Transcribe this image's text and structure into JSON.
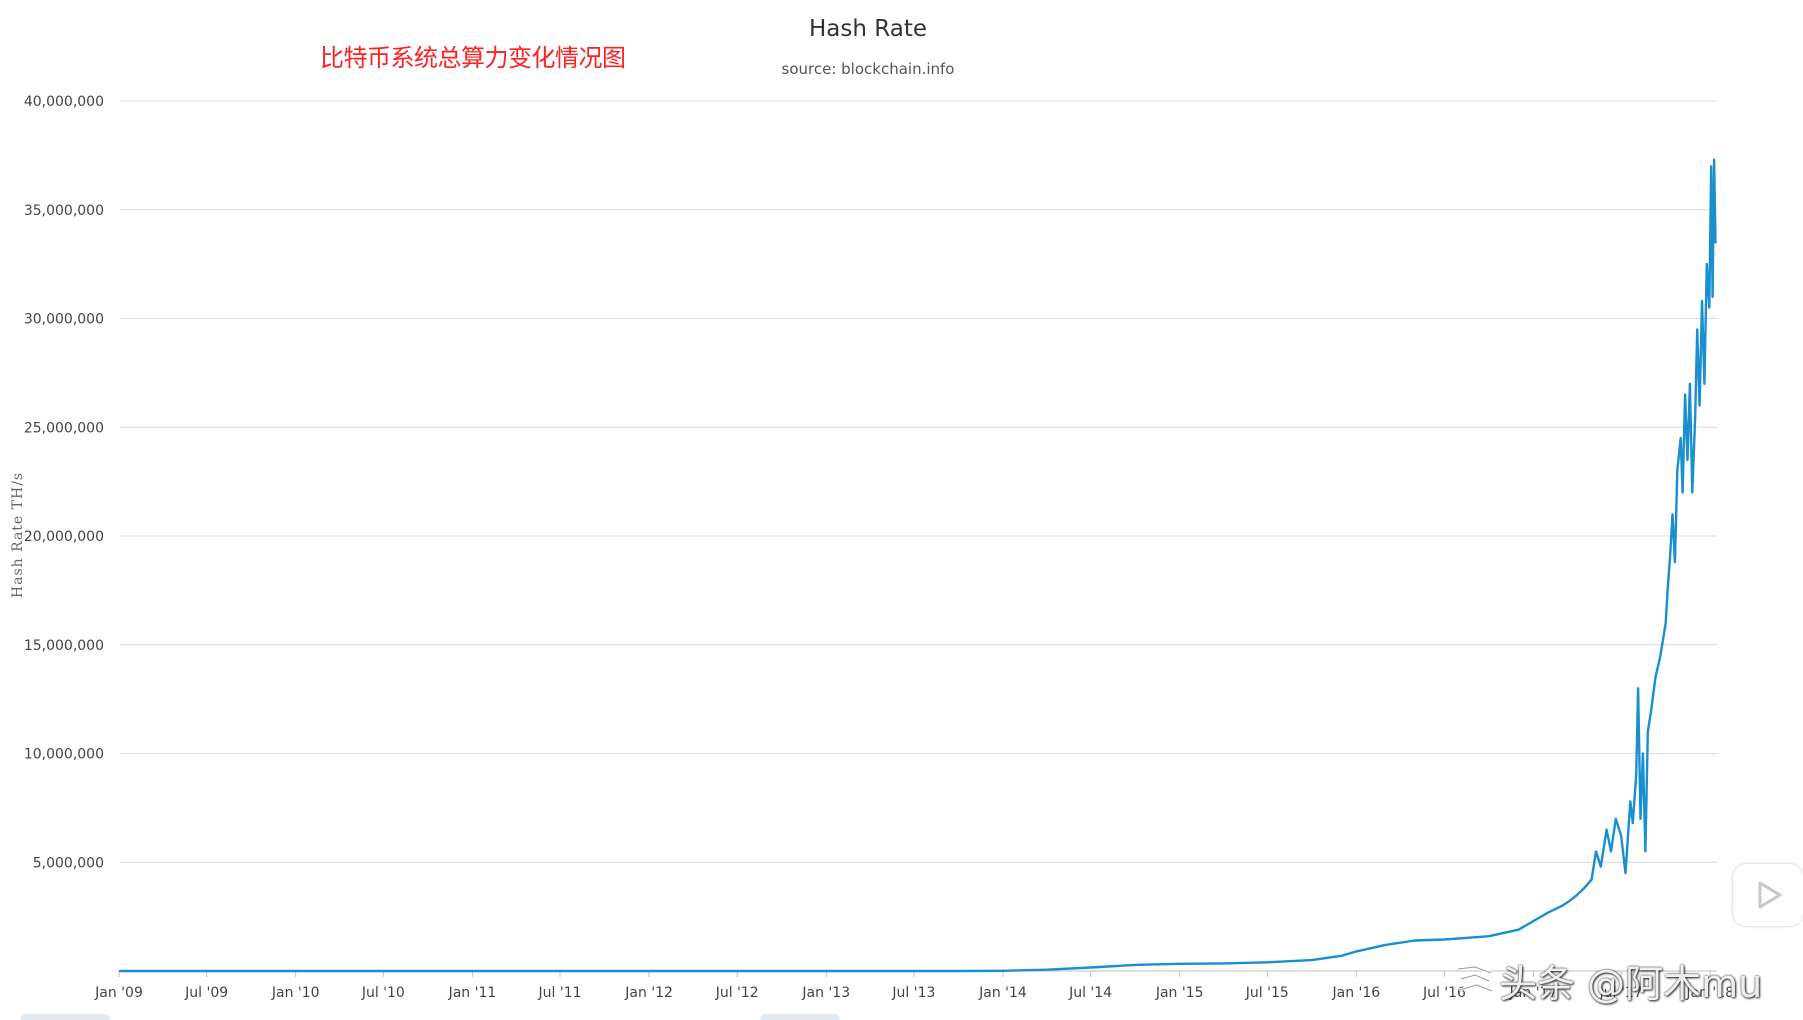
{
  "annotation": "比特币系统总算力变化情况图",
  "watermark": "头条 @阿木mu",
  "icons": {
    "play": "play-icon",
    "watermark": "toutiao-logo-icon"
  },
  "colors": {
    "line": "#1a8fd0",
    "grid": "#dcdcdc",
    "annotation": "#ff2020"
  },
  "chart_data": {
    "type": "line",
    "title": "Hash Rate",
    "subtitle": "source: blockchain.info",
    "ylabel": "Hash Rate TH/s",
    "xlabel": "",
    "xlim": [
      "2009-01-03",
      "2018-01-15"
    ],
    "ylim": [
      0,
      40000000
    ],
    "y_ticks": [
      5000000,
      10000000,
      15000000,
      20000000,
      25000000,
      30000000,
      35000000,
      40000000
    ],
    "y_tick_labels": [
      "5,000,000",
      "10,000,000",
      "15,000,000",
      "20,000,000",
      "25,000,000",
      "30,000,000",
      "35,000,000",
      "40,000,000"
    ],
    "x_ticks": [
      "2009-01-01",
      "2009-07-01",
      "2010-01-01",
      "2010-07-01",
      "2011-01-01",
      "2011-07-01",
      "2012-01-01",
      "2012-07-01",
      "2013-01-01",
      "2013-07-01",
      "2014-01-01",
      "2014-07-01",
      "2015-01-01",
      "2015-07-01",
      "2016-01-01",
      "2016-07-01",
      "2017-01-01",
      "2017-07-01",
      "2018-01-01"
    ],
    "x_tick_labels": [
      "Jan '09",
      "Jul '09",
      "Jan '10",
      "Jul '10",
      "Jan '11",
      "Jul '11",
      "Jan '12",
      "Jul '12",
      "Jan '13",
      "Jul '13",
      "Jan '14",
      "Jul '14",
      "Jan '15",
      "Jul '15",
      "Jan '16",
      "Jul '16",
      "Jan '17",
      "Jul '17",
      "Jan '18"
    ],
    "grid": true,
    "legend": "none",
    "series": [
      {
        "x": [
          "2009-01-03",
          "2013-01-01",
          "2013-07-01",
          "2013-10-01",
          "2014-01-01",
          "2014-04-01",
          "2014-07-01",
          "2014-10-01",
          "2015-01-01",
          "2015-04-01",
          "2015-07-01",
          "2015-10-01",
          "2015-12-01",
          "2016-01-01",
          "2016-03-01",
          "2016-05-01",
          "2016-07-01",
          "2016-08-01",
          "2016-10-01",
          "2016-12-01",
          "2017-01-01",
          "2017-02-01",
          "2017-03-01",
          "2017-03-15",
          "2017-04-01",
          "2017-04-15",
          "2017-05-01",
          "2017-05-10",
          "2017-05-20",
          "2017-06-01",
          "2017-06-10",
          "2017-06-20",
          "2017-07-01",
          "2017-07-10",
          "2017-07-20",
          "2017-07-25",
          "2017-08-01",
          "2017-08-05",
          "2017-08-10",
          "2017-08-15",
          "2017-08-20",
          "2017-08-25",
          "2017-09-01",
          "2017-09-10",
          "2017-09-20",
          "2017-10-01",
          "2017-10-05",
          "2017-10-10",
          "2017-10-15",
          "2017-10-20",
          "2017-10-25",
          "2017-11-01",
          "2017-11-05",
          "2017-11-10",
          "2017-11-15",
          "2017-11-20",
          "2017-11-25",
          "2017-12-01",
          "2017-12-05",
          "2017-12-10",
          "2017-12-15",
          "2017-12-20",
          "2017-12-25",
          "2017-12-30",
          "2018-01-03",
          "2018-01-06",
          "2018-01-09",
          "2018-01-12"
        ],
        "y": [
          0,
          20,
          200,
          1000,
          10000,
          60000,
          160000,
          280000,
          330000,
          350000,
          400000,
          500000,
          700000,
          900000,
          1200000,
          1400000,
          1450000,
          1500000,
          1600000,
          1900000,
          2300000,
          2700000,
          3000000,
          3200000,
          3500000,
          3800000,
          4200000,
          5500000,
          4800000,
          6500000,
          5500000,
          7000000,
          6200000,
          4500000,
          7800000,
          6800000,
          9000000,
          13000000,
          7000000,
          10000000,
          5500000,
          11000000,
          12000000,
          13500000,
          14500000,
          16000000,
          17500000,
          19000000,
          21000000,
          18800000,
          23000000,
          24500000,
          22000000,
          26500000,
          23500000,
          27000000,
          22000000,
          25500000,
          29500000,
          26000000,
          30800000,
          27000000,
          32500000,
          30500000,
          37000000,
          31000000,
          37300000,
          33500000
        ]
      }
    ]
  }
}
